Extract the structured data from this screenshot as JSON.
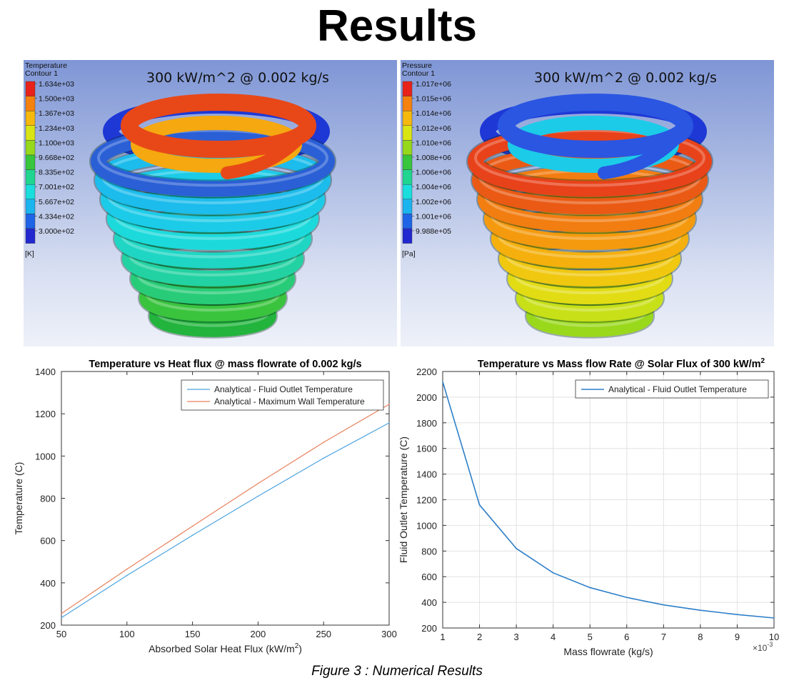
{
  "page": {
    "title": "Results",
    "caption": "Figure 3 : Numerical Results"
  },
  "sim_panels": [
    {
      "legend_title_1": "Temperature",
      "legend_title_2": "Contour 1",
      "unit": "[K]",
      "levels": [
        "1.634e+03",
        "1.500e+03",
        "1.367e+03",
        "1.234e+03",
        "1.100e+03",
        "9.668e+02",
        "8.335e+02",
        "7.001e+02",
        "5.667e+02",
        "4.334e+02",
        "3.000e+02"
      ],
      "colors": [
        "#e8221a",
        "#f5820e",
        "#f5b90d",
        "#d9e414",
        "#96d81c",
        "#38c63c",
        "#1fd58f",
        "#19dedd",
        "#1ab4ee",
        "#1d64e6",
        "#2228cf"
      ],
      "caption": "300 kW/m^2 @ 0.002 kg/s",
      "coil_colors": [
        "#22b43c",
        "#3ac43e",
        "#28cc78",
        "#22d2a2",
        "#1fd6c4",
        "#1cdadc",
        "#1ccbe8",
        "#1cbcec",
        "#2a5fd6"
      ],
      "top_ring_color": "#e84818",
      "top_ring_inner_color": "#f5a80f",
      "back_ring_color": "#1e38d6"
    },
    {
      "legend_title_1": "Pressure",
      "legend_title_2": "Contour 1",
      "unit": "[Pa]",
      "levels": [
        "1.017e+06",
        "1.015e+06",
        "1.014e+06",
        "1.012e+06",
        "1.010e+06",
        "1.008e+06",
        "1.006e+06",
        "1.004e+06",
        "1.002e+06",
        "1.001e+06",
        "9.988e+05"
      ],
      "colors": [
        "#e8221a",
        "#f5820e",
        "#f5b90d",
        "#d9e414",
        "#96d81c",
        "#38c63c",
        "#1fd58f",
        "#19dedd",
        "#1ab4ee",
        "#1d64e6",
        "#2228cf"
      ],
      "caption": "300 kW/m^2 @ 0.002 kg/s",
      "coil_colors": [
        "#9ad81c",
        "#c8e018",
        "#e2dc14",
        "#f0c810",
        "#f5b00e",
        "#f59a0e",
        "#f27d10",
        "#ea5a14",
        "#e8421a"
      ],
      "top_ring_color": "#2a56e2",
      "top_ring_inner_color": "#1ccbe8",
      "back_ring_color": "#1e38d6"
    }
  ],
  "chart_data": [
    {
      "type": "line",
      "title": "Temperature vs Heat flux @ mass flowrate of 0.002 kg/s",
      "xlabel": "Absorbed Solar Heat Flux (kW/m",
      "xlabel_sup": "2",
      "xlabel_end": ")",
      "ylabel": "Temperature (C)",
      "xlim": [
        50,
        300
      ],
      "ylim": [
        200,
        1400
      ],
      "xticks": [
        50,
        100,
        150,
        200,
        250,
        300
      ],
      "yticks": [
        200,
        400,
        600,
        800,
        1000,
        1200,
        1400
      ],
      "legend_position": "top-right",
      "series": [
        {
          "name": "Analytical - Fluid Outlet Temperature",
          "color": "#4aa3e0",
          "x": [
            50,
            100,
            150,
            200,
            250,
            300
          ],
          "values": [
            235,
            435,
            625,
            810,
            990,
            1157
          ]
        },
        {
          "name": "Analytical - Maximum Wall Temperature",
          "color": "#e8805a",
          "x": [
            50,
            100,
            150,
            200,
            250,
            300
          ],
          "values": [
            255,
            465,
            668,
            870,
            1065,
            1245
          ]
        }
      ]
    },
    {
      "type": "line",
      "title": "Temperature vs Mass flow Rate @  Solar Flux of 300 kW/m",
      "title_sup": "2",
      "xlabel": "Mass flowrate (kg/s)",
      "ylabel": "Fluid Outlet Temperature (C)",
      "x_multiplier": "×10",
      "x_multiplier_exp": "-3",
      "xlim": [
        1,
        10
      ],
      "ylim": [
        200,
        2200
      ],
      "xticks": [
        1,
        2,
        3,
        4,
        5,
        6,
        7,
        8,
        9,
        10
      ],
      "yticks": [
        200,
        400,
        600,
        800,
        1000,
        1200,
        1400,
        1600,
        1800,
        2000,
        2200
      ],
      "grid": true,
      "legend_position": "top-right",
      "series": [
        {
          "name": "Analytical - Fluid Outlet Temperature",
          "color": "#2e7fc8",
          "x": [
            1,
            2,
            3,
            4,
            5,
            6,
            7,
            8,
            9,
            10
          ],
          "values": [
            2120,
            1160,
            820,
            630,
            515,
            438,
            380,
            338,
            305,
            278
          ]
        }
      ]
    }
  ]
}
